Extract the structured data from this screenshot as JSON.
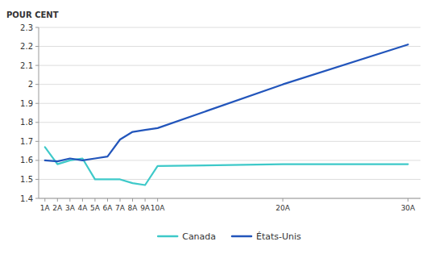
{
  "chart_data": {
    "type": "line",
    "ylabel": "POUR CENT",
    "x": [
      1,
      2,
      3,
      4,
      5,
      6,
      7,
      8,
      9,
      10,
      20,
      30
    ],
    "series": [
      {
        "name": "Canada",
        "color": "#3ec9c9",
        "values": [
          1.67,
          1.58,
          1.6,
          1.61,
          1.5,
          1.5,
          1.5,
          1.48,
          1.47,
          1.57,
          1.58,
          1.58
        ]
      },
      {
        "name": "États-Unis",
        "color": "#2255bb",
        "values": [
          1.6,
          1.595,
          1.61,
          1.6,
          1.61,
          1.62,
          1.71,
          1.75,
          1.76,
          1.77,
          2.0,
          2.21
        ]
      }
    ],
    "xlim": [
      0.5,
      31
    ],
    "xticks": [
      {
        "value": 1,
        "label": "1A"
      },
      {
        "value": 2,
        "label": "2A"
      },
      {
        "value": 3,
        "label": "3A"
      },
      {
        "value": 4,
        "label": "4A"
      },
      {
        "value": 5,
        "label": "5A"
      },
      {
        "value": 6,
        "label": "6A"
      },
      {
        "value": 7,
        "label": "7A"
      },
      {
        "value": 8,
        "label": "8A"
      },
      {
        "value": 9,
        "label": "9A"
      },
      {
        "value": 10,
        "label": "10A"
      },
      {
        "value": 20,
        "label": "20A"
      },
      {
        "value": 30,
        "label": "30A"
      }
    ],
    "ylim": [
      1.4,
      2.3
    ],
    "yticks": [
      1.4,
      1.5,
      1.6,
      1.7,
      1.8,
      1.9,
      2,
      2.1,
      2.2,
      2.3
    ],
    "grid": true,
    "legend": "bottom"
  }
}
